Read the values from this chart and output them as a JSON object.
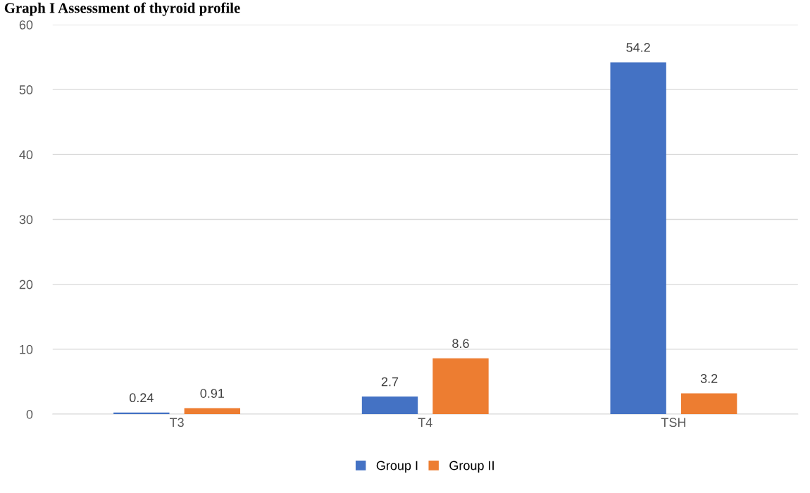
{
  "chart_data": {
    "type": "bar",
    "title": "Graph I Assessment of thyroid profile",
    "categories": [
      "T3",
      "T4",
      "TSH"
    ],
    "series": [
      {
        "name": "Group I",
        "color": "#4472c4",
        "values": [
          0.24,
          2.7,
          54.2
        ]
      },
      {
        "name": "Group II",
        "color": "#ed7d31",
        "values": [
          0.91,
          8.6,
          3.2
        ]
      }
    ],
    "ylim": [
      0,
      60
    ],
    "yticks": [
      0,
      10,
      20,
      30,
      40,
      50,
      60
    ],
    "grid": "y",
    "legend": "bottom",
    "data_labels": true
  }
}
